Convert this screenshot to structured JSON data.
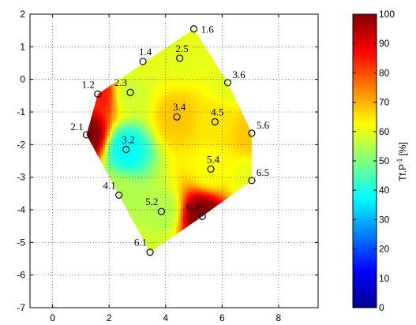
{
  "chart_data": {
    "type": "heatmap",
    "title": "",
    "xlabel": "",
    "ylabel": "",
    "xlim": [
      -0.8,
      9.4
    ],
    "ylim": [
      -7,
      2
    ],
    "xticks": [
      0,
      2,
      4,
      6,
      8
    ],
    "yticks": [
      2,
      1,
      0,
      -1,
      -2,
      -3,
      -4,
      -5,
      -6,
      -7
    ],
    "grid": true,
    "colormap": "jet",
    "clim": [
      0,
      100
    ],
    "colorbar": {
      "label_base": "Tf.P",
      "label_sup": "-1",
      "label_unit": " [%]",
      "ticks": [
        0,
        10,
        20,
        30,
        40,
        50,
        60,
        70,
        80,
        90,
        100
      ]
    },
    "points": [
      {
        "label": "1.2",
        "x": 1.6,
        "y": -0.45,
        "value": 85
      },
      {
        "label": "1.4",
        "x": 3.2,
        "y": 0.55,
        "value": 60
      },
      {
        "label": "1.6",
        "x": 5.0,
        "y": 1.55,
        "value": 60
      },
      {
        "label": "2.1",
        "x": 1.2,
        "y": -1.7,
        "value": 100
      },
      {
        "label": "2.3",
        "x": 2.75,
        "y": -0.4,
        "value": 58
      },
      {
        "label": "2.5",
        "x": 4.5,
        "y": 0.65,
        "value": 60
      },
      {
        "label": "3.2",
        "x": 2.6,
        "y": -2.15,
        "value": 38
      },
      {
        "label": "3.4",
        "x": 4.4,
        "y": -1.15,
        "value": 68
      },
      {
        "label": "3.6",
        "x": 6.2,
        "y": -0.1,
        "value": 60
      },
      {
        "label": "4.1",
        "x": 2.35,
        "y": -3.55,
        "value": 55
      },
      {
        "label": "4.5",
        "x": 5.75,
        "y": -1.3,
        "value": 65
      },
      {
        "label": "5.2",
        "x": 3.85,
        "y": -4.05,
        "value": 55
      },
      {
        "label": "5.4",
        "x": 5.6,
        "y": -2.75,
        "value": 62
      },
      {
        "label": "5.6",
        "x": 7.05,
        "y": -1.65,
        "value": 68
      },
      {
        "label": "6.1",
        "x": 3.45,
        "y": -5.3,
        "value": 58
      },
      {
        "label": "6.3",
        "x": 5.3,
        "y": -4.2,
        "value": 100
      },
      {
        "label": "6.5",
        "x": 7.05,
        "y": -3.1,
        "value": 60
      }
    ],
    "hull": [
      "1.2",
      "1.6",
      "3.6",
      "5.6",
      "6.5",
      "6.3",
      "6.1",
      "4.1",
      "2.1"
    ]
  }
}
